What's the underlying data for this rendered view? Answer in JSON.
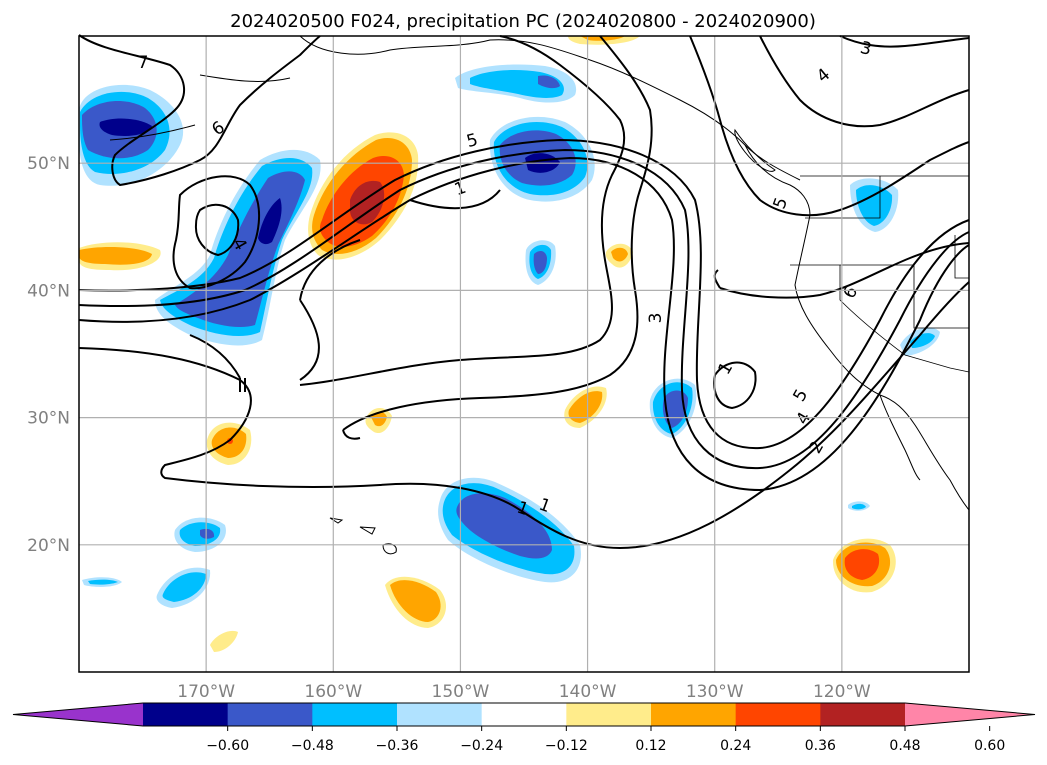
{
  "title": "2024020500 F024, precipitation PC (2024020800 - 2024020900)",
  "map": {
    "lat_labels": [
      "50°N",
      "40°N",
      "30°N",
      "20°N"
    ],
    "lon_labels": [
      "170°W",
      "160°W",
      "150°W",
      "140°W",
      "130°W",
      "120°W"
    ],
    "lat_values": [
      50,
      40,
      30,
      20
    ],
    "lon_values": [
      -170,
      -160,
      -150,
      -140,
      -130,
      -120
    ],
    "extent": {
      "lon_min": -180,
      "lon_max": -110,
      "lat_min": 10,
      "lat_max": 60
    },
    "grid": true,
    "contour_labels": [
      "7",
      "6",
      "5",
      "1",
      "4",
      "3",
      "3",
      "4",
      "1",
      "5",
      "4",
      "2",
      "6",
      "5",
      "1",
      "1"
    ]
  },
  "colorbar": {
    "ticks": [
      "−0.60",
      "−0.48",
      "−0.36",
      "−0.24",
      "−0.12",
      "0.12",
      "0.24",
      "0.36",
      "0.48",
      "0.60"
    ],
    "colors": [
      "#9933cc",
      "#00008b",
      "#3a58c9",
      "#00bfff",
      "#b0e2ff",
      "#ffffff",
      "#ffec8b",
      "#ffa500",
      "#ff4500",
      "#b22222",
      "#ff85a8"
    ],
    "extend": "both"
  },
  "palette": {
    "pos_light": "#ffec8b",
    "pos_mid": "#ffa500",
    "pos_strong": "#ff4500",
    "pos_max": "#b22222",
    "neg_light": "#b0e2ff",
    "neg_mid": "#00bfff",
    "neg_strong": "#3a58c9",
    "neg_max": "#00008b"
  }
}
